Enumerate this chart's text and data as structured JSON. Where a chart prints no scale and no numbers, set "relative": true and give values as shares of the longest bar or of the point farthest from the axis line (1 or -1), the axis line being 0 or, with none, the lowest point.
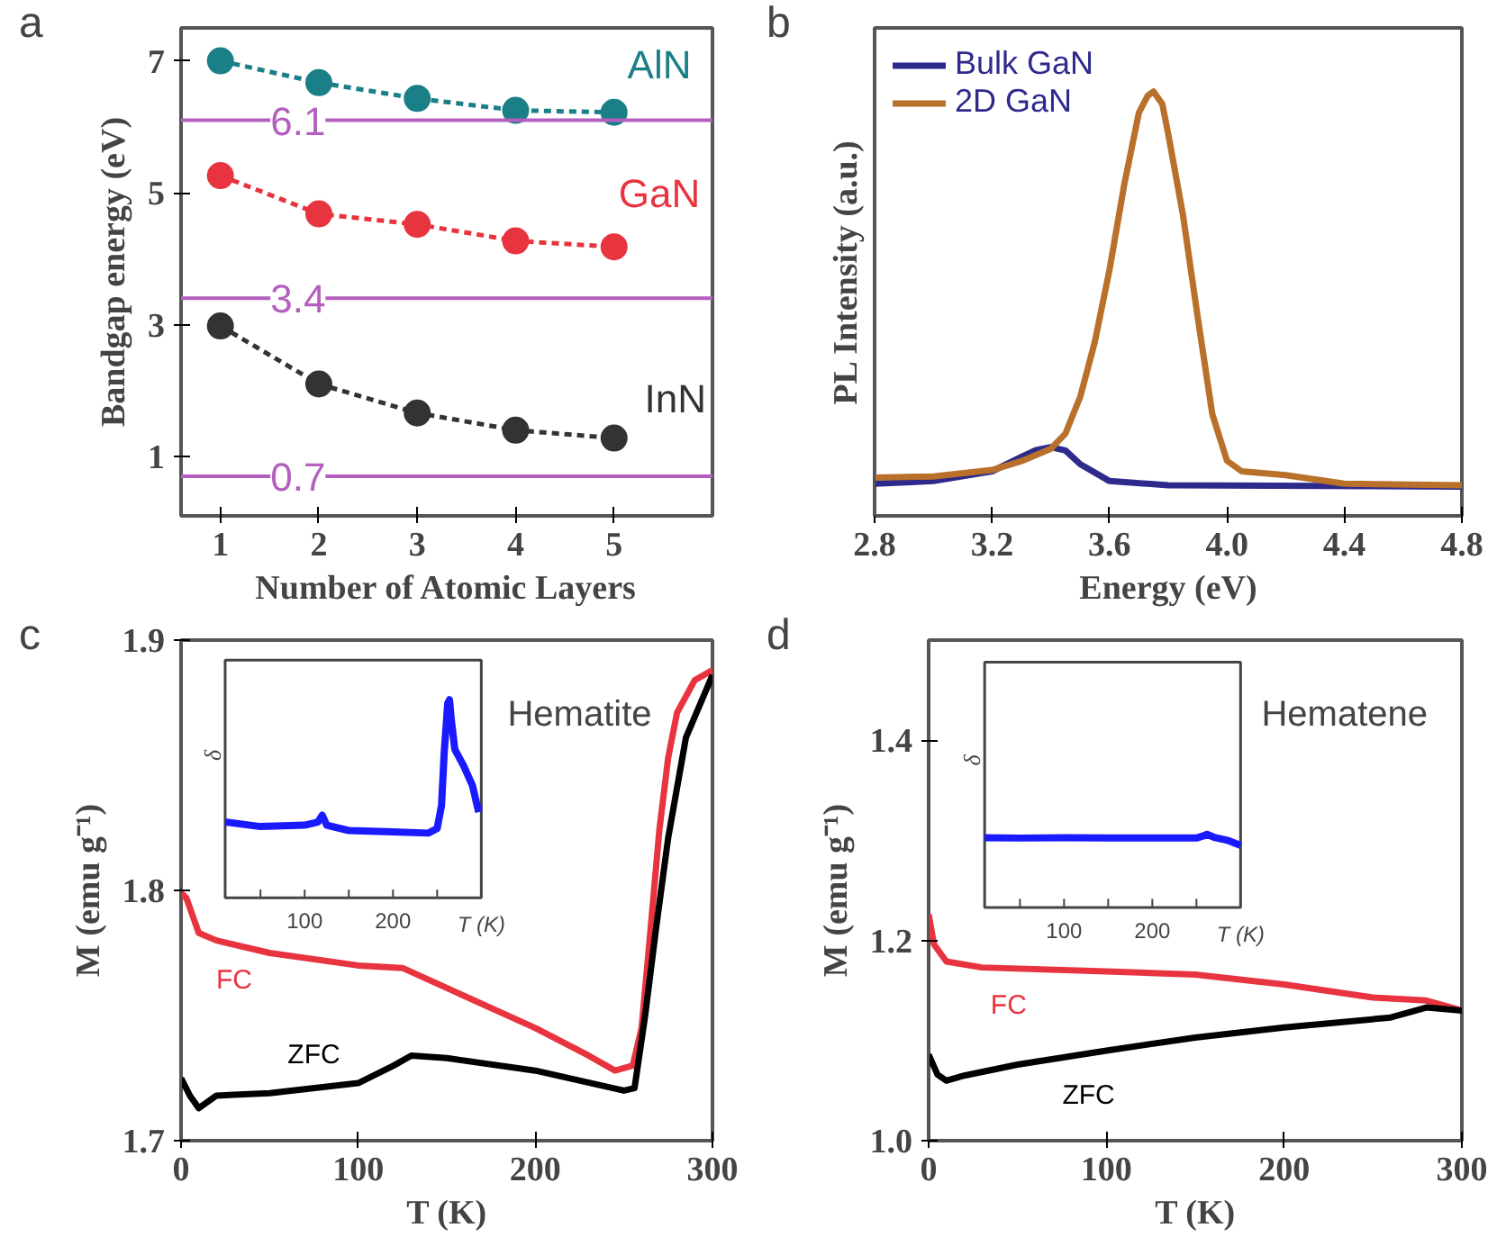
{
  "chart_data": [
    {
      "type": "line",
      "xlabel": "Number of Atomic Layers",
      "ylabel": "Bandgap energy (eV)",
      "annotations": [
        "a"
      ],
      "x": [
        1,
        2,
        3,
        4,
        5
      ],
      "xlim": [
        0.6,
        6.0
      ],
      "ylim": [
        0.1,
        7.5
      ],
      "xticks": [
        1,
        2,
        3,
        4,
        5
      ],
      "yticks": [
        1,
        3,
        5,
        7
      ],
      "marker": "circle",
      "line_style": "dashed",
      "grid": false,
      "series": [
        {
          "name": "AlN",
          "color": "#1a7f86",
          "values": [
            7.0,
            6.67,
            6.43,
            6.25,
            6.22
          ]
        },
        {
          "name": "GaN",
          "color": "#e8343f",
          "values": [
            5.26,
            4.68,
            4.52,
            4.27,
            4.18
          ]
        },
        {
          "name": "InN",
          "color": "#333333",
          "values": [
            2.98,
            2.1,
            1.66,
            1.4,
            1.28
          ]
        }
      ],
      "ref_lines": [
        {
          "axis": "y",
          "value": 6.1,
          "label": "6.1",
          "color": "#b45fbf"
        },
        {
          "axis": "y",
          "value": 3.4,
          "label": "3.4",
          "color": "#b45fbf"
        },
        {
          "axis": "y",
          "value": 0.7,
          "label": "0.7",
          "color": "#b45fbf"
        }
      ]
    },
    {
      "type": "line",
      "xlabel": "Energy (eV)",
      "ylabel": "PL Intensity (a.u.)",
      "annotations": [
        "b"
      ],
      "relative": true,
      "xlim": [
        2.8,
        4.8
      ],
      "xticks": [
        2.8,
        3.2,
        3.6,
        {
          "value": 4.0,
          "label": "4.0"
        },
        4.4,
        4.8
      ],
      "legend": "top left",
      "grid": false,
      "series": [
        {
          "name": "Bulk GaN",
          "color": "#2e2a8c",
          "x": [
            2.8,
            3.0,
            3.2,
            3.3,
            3.35,
            3.4,
            3.45,
            3.5,
            3.6,
            3.8,
            4.8
          ],
          "values": [
            0.076,
            0.082,
            0.105,
            0.139,
            0.155,
            0.162,
            0.154,
            0.122,
            0.082,
            0.072,
            0.069
          ]
        },
        {
          "name": "2D GaN",
          "color": "#b8702a",
          "x": [
            2.8,
            3.0,
            3.2,
            3.3,
            3.4,
            3.45,
            3.5,
            3.55,
            3.6,
            3.65,
            3.7,
            3.73,
            3.75,
            3.78,
            3.8,
            3.85,
            3.9,
            3.95,
            4.0,
            4.05,
            4.2,
            4.3,
            4.4,
            4.8
          ],
          "values": [
            0.09,
            0.093,
            0.108,
            0.129,
            0.158,
            0.194,
            0.28,
            0.41,
            0.58,
            0.78,
            0.95,
            0.99,
            1.0,
            0.97,
            0.9,
            0.71,
            0.47,
            0.24,
            0.13,
            0.105,
            0.096,
            0.086,
            0.076,
            0.072
          ]
        }
      ]
    },
    {
      "type": "line",
      "xlabel": "T (K)",
      "ylabel": "M (emu g⁻¹)",
      "annotations": [
        "c",
        "Hematite"
      ],
      "xlim": [
        0,
        300
      ],
      "ylim": [
        1.7,
        1.9
      ],
      "xticks": [
        0,
        100,
        200,
        300
      ],
      "yticks": [
        1.7,
        1.8,
        1.9
      ],
      "grid": false,
      "series": [
        {
          "name": "FC",
          "color": "#e8343f",
          "x": [
            0,
            3,
            10,
            20,
            50,
            100,
            125,
            150,
            200,
            230,
            245,
            255,
            260,
            265,
            270,
            275,
            280,
            290,
            300
          ],
          "values": [
            1.799,
            1.797,
            1.783,
            1.78,
            1.775,
            1.77,
            1.769,
            1.761,
            1.745,
            1.734,
            1.728,
            1.73,
            1.745,
            1.784,
            1.824,
            1.853,
            1.871,
            1.884,
            1.888
          ]
        },
        {
          "name": "ZFC",
          "color": "#000000",
          "x": [
            0,
            5,
            10,
            20,
            50,
            100,
            120,
            130,
            150,
            200,
            250,
            256,
            262,
            268,
            275,
            285,
            300
          ],
          "values": [
            1.725,
            1.718,
            1.713,
            1.718,
            1.719,
            1.723,
            1.73,
            1.734,
            1.733,
            1.728,
            1.72,
            1.721,
            1.75,
            1.784,
            1.821,
            1.861,
            1.886
          ]
        }
      ]
    },
    {
      "type": "line",
      "xlabel": "T (K)",
      "ylabel": "δ",
      "relative": true,
      "xlim": [
        10,
        300
      ],
      "xticks": [
        {
          "value": 50,
          "label": null
        },
        100,
        {
          "value": 150,
          "label": null
        },
        200,
        {
          "value": 250,
          "label": null
        }
      ],
      "series": [
        {
          "color": "#1a1aff",
          "x": [
            10,
            50,
            100,
            115,
            120,
            125,
            150,
            200,
            240,
            250,
            255,
            258,
            262,
            264,
            266,
            270,
            280,
            290,
            297
          ],
          "values": [
            0.383,
            0.36,
            0.367,
            0.383,
            0.417,
            0.367,
            0.34,
            0.333,
            0.327,
            0.35,
            0.467,
            0.733,
            0.983,
            1.0,
            0.9,
            0.75,
            0.667,
            0.567,
            0.433
          ]
        }
      ]
    },
    {
      "type": "line",
      "xlabel": "T (K)",
      "ylabel": "M (emu g⁻¹)",
      "annotations": [
        "d",
        "Hematene"
      ],
      "xlim": [
        0,
        300
      ],
      "ylim": [
        1.0,
        1.5
      ],
      "xticks": [
        0,
        100,
        200,
        300
      ],
      "yticks": [
        {
          "value": 1.0,
          "label": "1.0"
        },
        1.2,
        1.4
      ],
      "grid": false,
      "series": [
        {
          "name": "FC",
          "color": "#e8343f",
          "x": [
            0,
            3,
            10,
            30,
            100,
            150,
            200,
            250,
            280,
            300
          ],
          "values": [
            1.226,
            1.196,
            1.179,
            1.173,
            1.169,
            1.166,
            1.156,
            1.143,
            1.14,
            1.13
          ]
        },
        {
          "name": "ZFC",
          "color": "#000000",
          "x": [
            0,
            5,
            10,
            20,
            50,
            100,
            150,
            200,
            260,
            280,
            300
          ],
          "values": [
            1.086,
            1.066,
            1.06,
            1.065,
            1.076,
            1.09,
            1.103,
            1.113,
            1.123,
            1.133,
            1.13
          ]
        }
      ]
    },
    {
      "type": "line",
      "xlabel": "T (K)",
      "ylabel": "δ",
      "relative": true,
      "xlim": [
        10,
        300
      ],
      "xticks": [
        {
          "value": 50,
          "label": null
        },
        100,
        {
          "value": 150,
          "label": null
        },
        200,
        {
          "value": 250,
          "label": null
        }
      ],
      "series": [
        {
          "color": "#1a1aff",
          "x": [
            10,
            50,
            100,
            150,
            200,
            250,
            258,
            262,
            270,
            285,
            300
          ],
          "values": [
            0.955,
            0.95,
            0.955,
            0.95,
            0.95,
            0.95,
            0.98,
            1.0,
            0.96,
            0.92,
            0.85
          ]
        }
      ]
    }
  ]
}
